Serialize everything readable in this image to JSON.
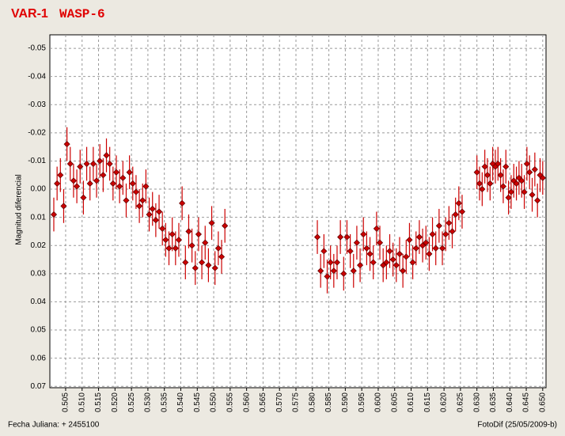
{
  "chart_data": {
    "type": "scatter",
    "title": "VAR-1",
    "subtitle": "WASP-6",
    "y_label": "Magnitud diferencial",
    "x_label": "Fecha Juliana:  + 2455100",
    "footer": "FotoDif (25/05/2009-b)",
    "xlim": [
      0.5002,
      0.651
    ],
    "ylim": [
      0.0705,
      -0.0548
    ],
    "grid": true,
    "xticks": [
      0.505,
      {
        "value": 0.51,
        "label": "0.510"
      },
      0.515,
      {
        "value": 0.52,
        "label": "0.520"
      },
      0.525,
      {
        "value": 0.53,
        "label": "0.530"
      },
      0.535,
      {
        "value": 0.54,
        "label": "0.540"
      },
      0.545,
      {
        "value": 0.55,
        "label": "0.550"
      },
      0.555,
      {
        "value": 0.56,
        "label": "0.560"
      },
      0.565,
      {
        "value": 0.57,
        "label": "0.570"
      },
      0.575,
      {
        "value": 0.58,
        "label": "0.580"
      },
      0.585,
      {
        "value": 0.59,
        "label": "0.590"
      },
      0.595,
      {
        "value": 0.6,
        "label": "0.600"
      },
      0.605,
      {
        "value": 0.61,
        "label": "0.610"
      },
      0.615,
      {
        "value": 0.62,
        "label": "0.620"
      },
      0.625,
      {
        "value": 0.63,
        "label": "0.630"
      },
      0.635,
      {
        "value": 0.64,
        "label": "0.640"
      },
      0.645,
      {
        "value": 0.65,
        "label": "0.650"
      }
    ],
    "yticks": [
      {
        "value": -0.05,
        "label": "-0.05"
      },
      {
        "value": -0.04,
        "label": "-0.04"
      },
      {
        "value": -0.03,
        "label": "-0.03"
      },
      {
        "value": -0.02,
        "label": "-0.02"
      },
      {
        "value": -0.01,
        "label": "-0.01"
      },
      {
        "value": 0,
        "label": "0.00"
      },
      {
        "value": 0.01,
        "label": "0.01"
      },
      {
        "value": 0.02,
        "label": "0.02"
      },
      {
        "value": 0.03,
        "label": "0.03"
      },
      {
        "value": 0.04,
        "label": "0.04"
      },
      {
        "value": 0.05,
        "label": "0.05"
      },
      {
        "value": 0.06,
        "label": "0.06"
      },
      {
        "value": 0.07,
        "label": "0.07"
      }
    ],
    "series": [
      {
        "color": "#cc0000",
        "error": 0.006,
        "x": [
          0.5014,
          0.5024,
          0.5034,
          0.5044,
          0.5054,
          0.5064,
          0.5074,
          0.5084,
          0.5094,
          0.5104,
          0.5114,
          0.5124,
          0.5134,
          0.5144,
          0.5154,
          0.5164,
          0.5174,
          0.5184,
          0.5194,
          0.5204,
          0.5214,
          0.5224,
          0.5234,
          0.5244,
          0.5254,
          0.5264,
          0.5274,
          0.5284,
          0.5294,
          0.5304,
          0.5314,
          0.5324,
          0.5334,
          0.5344,
          0.5354,
          0.5364,
          0.5374,
          0.5384,
          0.5394,
          0.5404,
          0.5414,
          0.5424,
          0.5434,
          0.5444,
          0.5454,
          0.5464,
          0.5474,
          0.5484,
          0.5494,
          0.5504,
          0.5514,
          0.5524,
          0.5534,
          0.5815,
          0.5825,
          0.5835,
          0.5845,
          0.5855,
          0.5865,
          0.5875,
          0.5885,
          0.5895,
          0.5905,
          0.5915,
          0.5925,
          0.5935,
          0.5945,
          0.5955,
          0.5965,
          0.5975,
          0.5985,
          0.5995,
          0.6005,
          0.6015,
          0.6025,
          0.6035,
          0.6045,
          0.6055,
          0.6065,
          0.6075,
          0.6085,
          0.6095,
          0.6105,
          0.6115,
          0.6125,
          0.6135,
          0.6145,
          0.6155,
          0.6165,
          0.6175,
          0.6185,
          0.6195,
          0.6205,
          0.6215,
          0.6225,
          0.6235,
          0.6245,
          0.6255,
          0.63,
          0.6308,
          0.6316,
          0.6324,
          0.6332,
          0.634,
          0.6348,
          0.6356,
          0.6364,
          0.6372,
          0.638,
          0.6388,
          0.6396,
          0.6404,
          0.6412,
          0.642,
          0.6428,
          0.6436,
          0.6444,
          0.6452,
          0.646,
          0.6468,
          0.6476,
          0.6484,
          0.6492,
          0.65
        ],
        "values": [
          0.009,
          -0.002,
          -0.005,
          0.006,
          -0.016,
          -0.009,
          -0.003,
          -0.001,
          -0.008,
          0.003,
          -0.009,
          -0.002,
          -0.009,
          -0.003,
          -0.01,
          -0.005,
          -0.012,
          -0.009,
          -0.002,
          -0.006,
          -0.001,
          -0.004,
          0.004,
          -0.006,
          -0.002,
          0.001,
          0.006,
          0.004,
          -0.001,
          0.009,
          0.007,
          0.011,
          0.008,
          0.014,
          0.018,
          0.021,
          0.016,
          0.021,
          0.018,
          0.005,
          0.026,
          0.015,
          0.02,
          0.028,
          0.016,
          0.026,
          0.019,
          0.027,
          0.012,
          0.028,
          0.021,
          0.024,
          0.013,
          0.017,
          0.029,
          0.022,
          0.031,
          0.026,
          0.029,
          0.026,
          0.017,
          0.03,
          0.017,
          0.022,
          0.029,
          0.019,
          0.027,
          0.016,
          0.021,
          0.023,
          0.026,
          0.014,
          0.019,
          0.027,
          0.026,
          0.022,
          0.025,
          0.027,
          0.023,
          0.029,
          0.024,
          0.018,
          0.026,
          0.021,
          0.017,
          0.02,
          0.019,
          0.023,
          0.016,
          0.021,
          0.013,
          0.021,
          0.016,
          0.012,
          0.015,
          0.009,
          0.005,
          0.008,
          -0.006,
          -0.002,
          0,
          -0.008,
          -0.005,
          -0.002,
          -0.009,
          -0.008,
          -0.009,
          -0.005,
          -0.001,
          -0.008,
          0.003,
          0.001,
          -0.003,
          -0.002,
          -0.004,
          -0.003,
          0.001,
          -0.009,
          -0.006,
          0.002,
          -0.007,
          0.004,
          -0.005,
          -0.004
        ]
      }
    ]
  }
}
